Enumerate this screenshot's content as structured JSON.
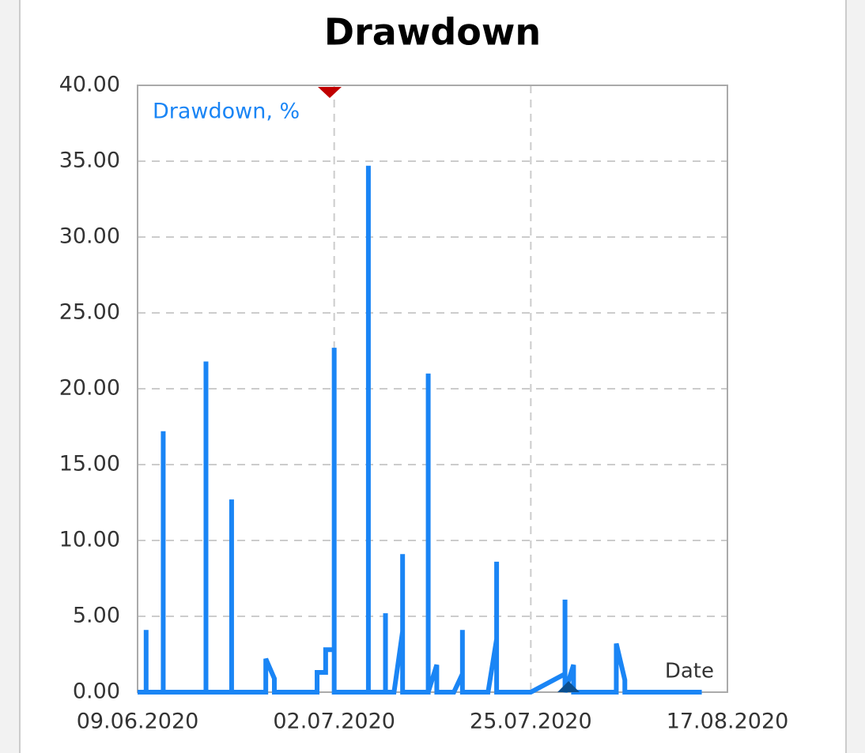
{
  "chart_data": {
    "type": "line",
    "title": "Drawdown",
    "x_label": "Date",
    "x": [
      "2020-06-09",
      "2020-06-10",
      "2020-06-10",
      "2020-06-10",
      "2020-06-12",
      "2020-06-12",
      "2020-06-12",
      "2020-06-17",
      "2020-06-17",
      "2020-06-17",
      "2020-06-20",
      "2020-06-20",
      "2020-06-20",
      "2020-06-24",
      "2020-06-24",
      "2020-06-25",
      "2020-06-25",
      "2020-06-30",
      "2020-06-30",
      "2020-07-01",
      "2020-07-01",
      "2020-07-02",
      "2020-07-02",
      "2020-07-02",
      "2020-07-06",
      "2020-07-06",
      "2020-07-06",
      "2020-07-08",
      "2020-07-08",
      "2020-07-08",
      "2020-07-09",
      "2020-07-10",
      "2020-07-10",
      "2020-07-10",
      "2020-07-13",
      "2020-07-13",
      "2020-07-13",
      "2020-07-14",
      "2020-07-14",
      "2020-07-16",
      "2020-07-17",
      "2020-07-17",
      "2020-07-17",
      "2020-07-20",
      "2020-07-21",
      "2020-07-21",
      "2020-07-21",
      "2020-07-25",
      "2020-07-29",
      "2020-07-29",
      "2020-07-29",
      "2020-07-30",
      "2020-07-30",
      "2020-08-04",
      "2020-08-04",
      "2020-08-05",
      "2020-08-05",
      "2020-08-14"
    ],
    "series": [
      {
        "name": "Drawdown, %",
        "color": "#1a85f5",
        "values": [
          0,
          0,
          4.1,
          0,
          0,
          17.2,
          0,
          0,
          21.8,
          0,
          0,
          12.7,
          0,
          0,
          2.2,
          0.9,
          0,
          0,
          1.3,
          1.3,
          2.8,
          2.8,
          22.7,
          0,
          0,
          34.7,
          0,
          0,
          5.2,
          0,
          0,
          4.0,
          9.1,
          0,
          0,
          21.0,
          0,
          1.8,
          0,
          0,
          1.2,
          4.1,
          0,
          0,
          3.5,
          8.6,
          0,
          0,
          1.2,
          6.1,
          0,
          1.8,
          0,
          0,
          3.2,
          0.8,
          0,
          0
        ]
      }
    ],
    "xlim": [
      "2020-06-09",
      "2020-08-17"
    ],
    "xticks": [
      {
        "value": "2020-06-09",
        "label": "09.06.2020"
      },
      {
        "value": "2020-07-02",
        "label": "02.07.2020"
      },
      {
        "value": "2020-07-25",
        "label": "25.07.2020"
      },
      {
        "value": "2020-08-17",
        "label": "17.08.2020"
      }
    ],
    "ylim": [
      0,
      40
    ],
    "yticks": [
      {
        "value": 0,
        "label": "0.00"
      },
      {
        "value": 5,
        "label": "5.00"
      },
      {
        "value": 10,
        "label": "10.00"
      },
      {
        "value": 15,
        "label": "15.00"
      },
      {
        "value": 20,
        "label": "20.00"
      },
      {
        "value": 25,
        "label": "25.00"
      },
      {
        "value": 30,
        "label": "30.00"
      },
      {
        "value": 35,
        "label": "35.00"
      },
      {
        "value": 40,
        "label": "40.00"
      }
    ],
    "grid": true
  }
}
